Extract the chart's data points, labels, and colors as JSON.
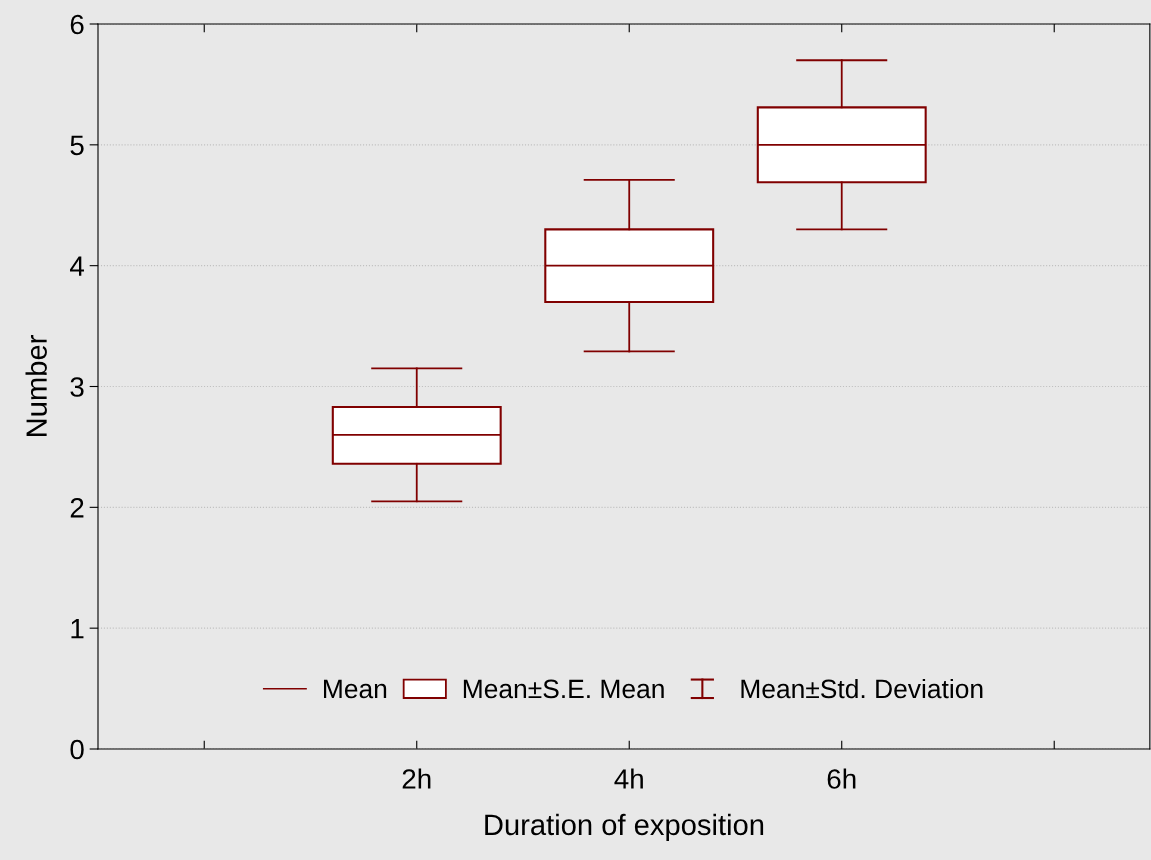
{
  "chart_data": {
    "type": "box",
    "xlabel": "Duration of exposition",
    "ylabel": "Number",
    "categories": [
      null,
      "2h",
      "4h",
      "6h",
      null
    ],
    "color": "#800000",
    "boxes": [
      null,
      {
        "low": 2.05,
        "q1": 2.36,
        "median": 2.6,
        "q3": 2.83,
        "high": 3.15
      },
      {
        "low": 3.29,
        "q1": 3.7,
        "median": 4.0,
        "q3": 4.3,
        "high": 4.71
      },
      {
        "low": 4.3,
        "q1": 4.69,
        "median": 5.0,
        "q3": 5.31,
        "high": 5.7
      },
      null
    ],
    "ylim": [
      0,
      6
    ],
    "yticks": [
      0,
      1,
      2,
      3,
      4,
      5,
      6
    ],
    "grid": "y",
    "annotations": [
      "Mean",
      "Mean±S.E. Mean",
      "Mean±Std. Deviation"
    ]
  }
}
